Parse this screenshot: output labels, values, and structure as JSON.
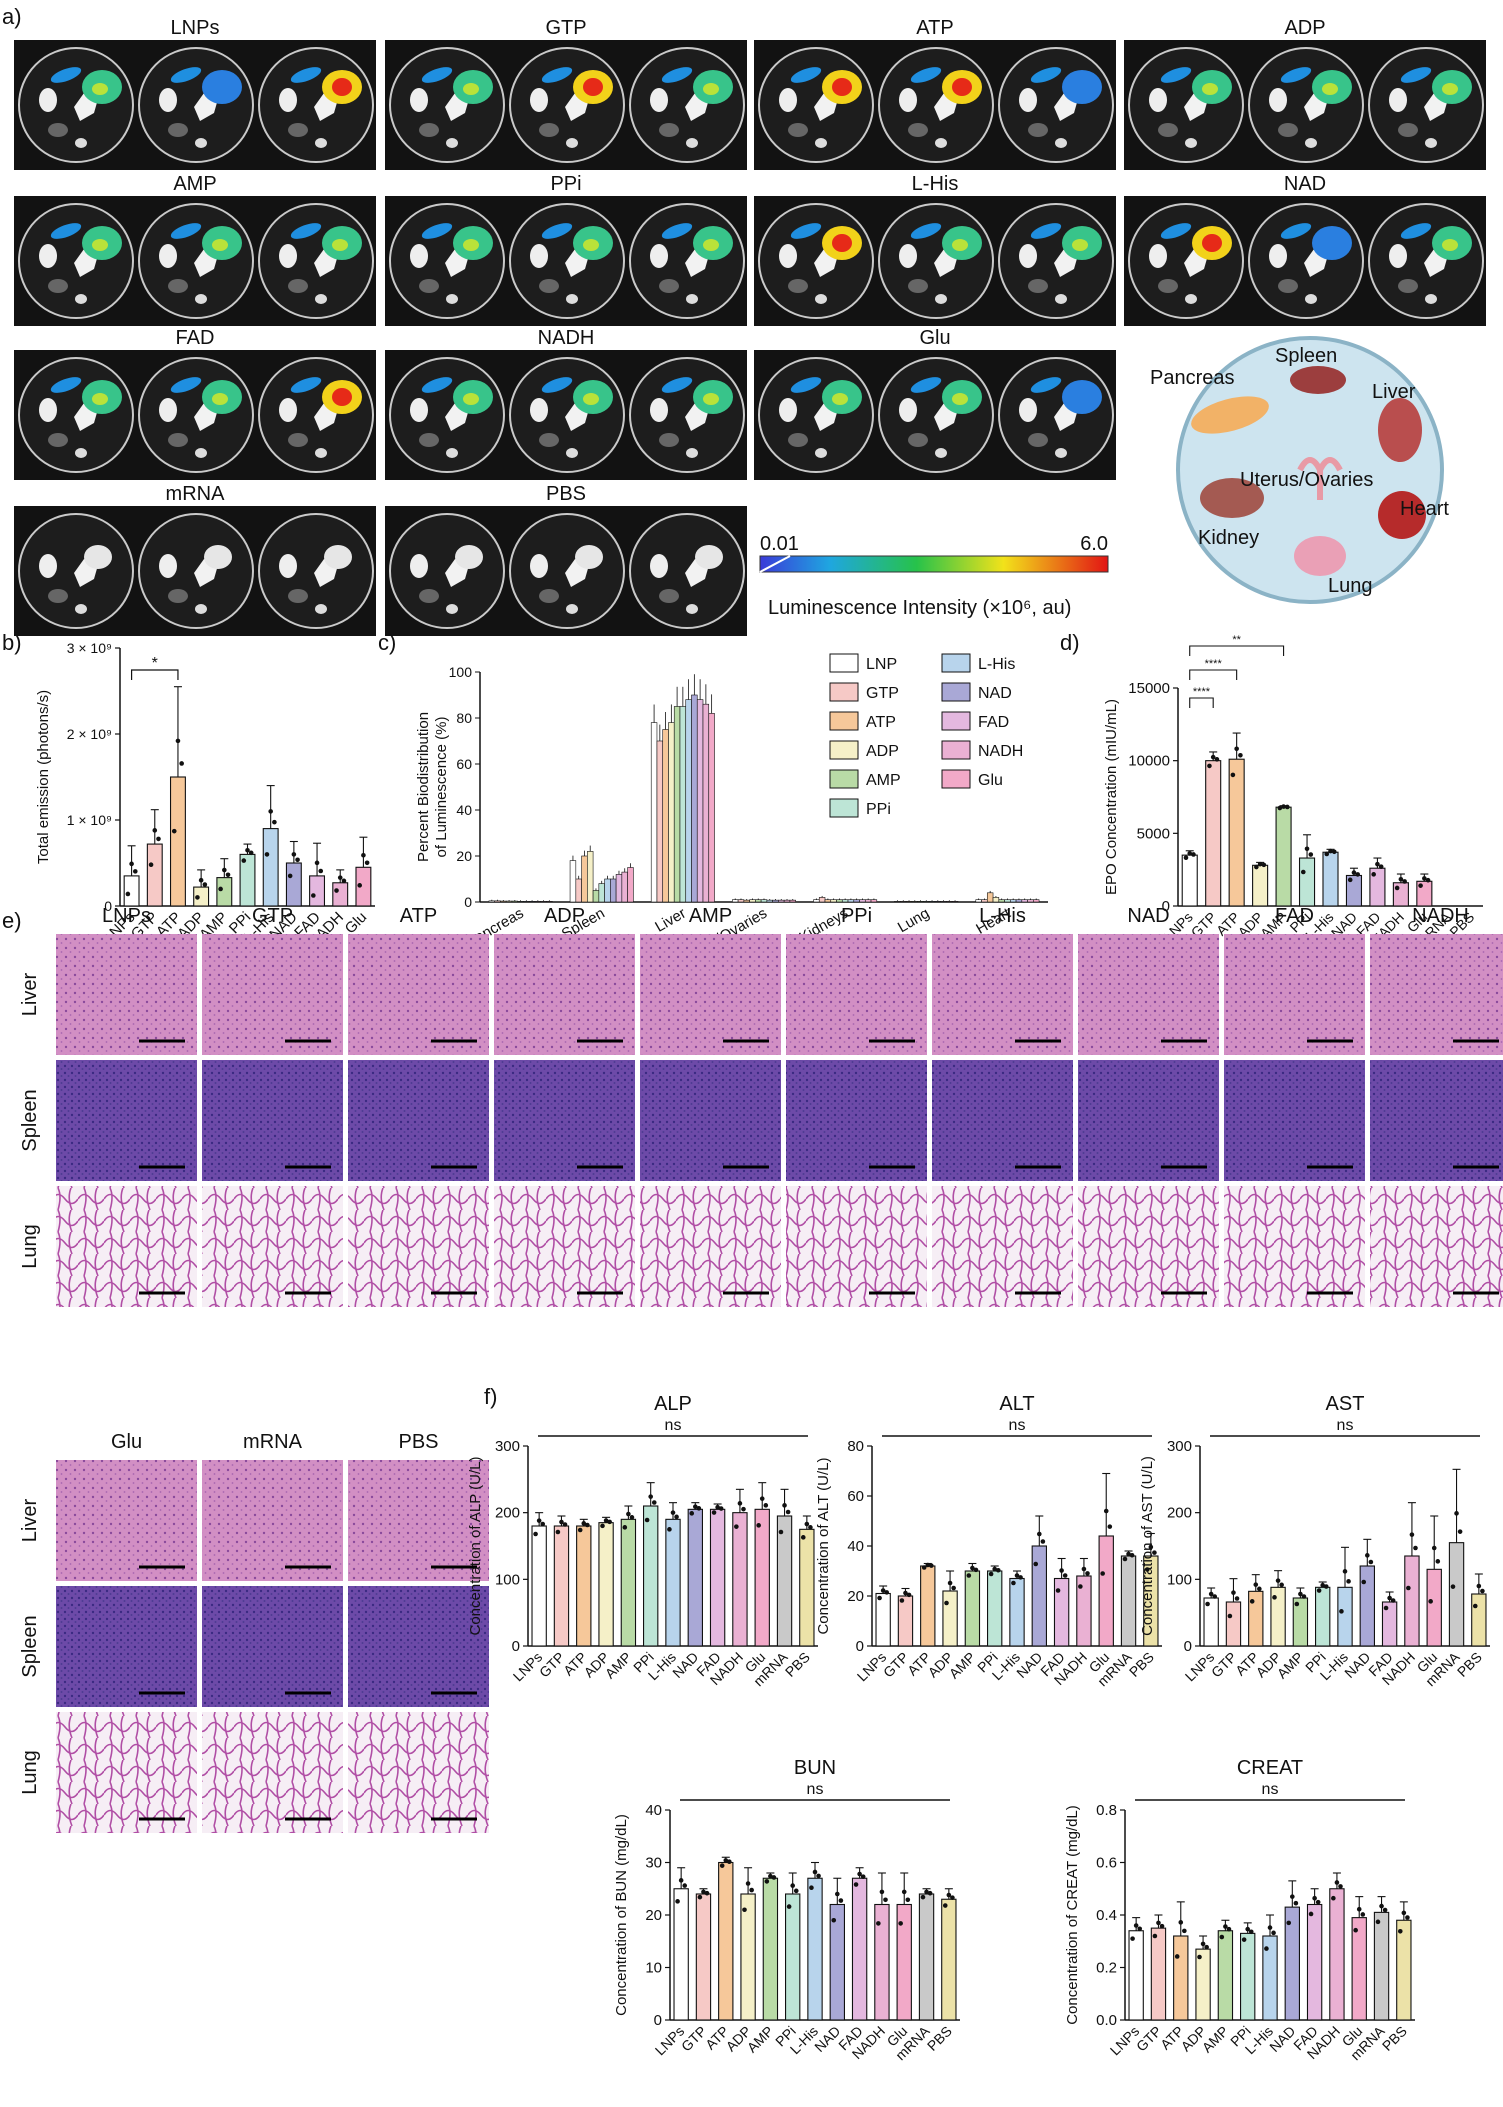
{
  "panels": {
    "a": "a)",
    "b": "b)",
    "c": "c)",
    "d": "d)",
    "e": "e)",
    "f": "f)"
  },
  "imaging": {
    "groups": [
      "LNPs",
      "GTP",
      "ATP",
      "ADP",
      "AMP",
      "PPi",
      "L-His",
      "NAD",
      "FAD",
      "NADH",
      "Glu",
      "mRNA",
      "PBS"
    ],
    "colorbar": {
      "min": "0.01",
      "max": "6.0",
      "label": "Luminescence Intensity (×10⁶, au)"
    },
    "organ_schematic": [
      "Pancreas",
      "Spleen",
      "Liver",
      "Uterus/Ovaries",
      "Heart",
      "Kidney",
      "Lung"
    ]
  },
  "histology": {
    "columns_top": [
      "LNPs",
      "GTP",
      "ATP",
      "ADP",
      "AMP",
      "PPi",
      "L-His",
      "NAD",
      "FAD",
      "NADH"
    ],
    "columns_bottom": [
      "Glu",
      "mRNA",
      "PBS"
    ],
    "rows": [
      "Liver",
      "Spleen",
      "Lung"
    ]
  },
  "colors": {
    "LNPs": "#ffffff",
    "GTP": "#f6c9c6",
    "ATP": "#f6c89a",
    "ADP": "#f5f0c8",
    "AMP": "#b9dba6",
    "PPi": "#bde5d6",
    "L-His": "#b8d4ec",
    "NAD": "#a9a8d6",
    "FAD": "#e4b8df",
    "NADH": "#eab1d3",
    "Glu": "#f2a9c8",
    "mRNA": "#c9c9c9",
    "PBS": "#ece2a8"
  },
  "chart_data": [
    {
      "id": "b",
      "type": "bar",
      "categories": [
        "LNPs",
        "GTP",
        "ATP",
        "ADP",
        "AMP",
        "PPi",
        "L-His",
        "NAD",
        "FAD",
        "NADH",
        "Glu"
      ],
      "values": [
        0.35,
        0.72,
        1.5,
        0.22,
        0.33,
        0.6,
        0.9,
        0.5,
        0.35,
        0.27,
        0.45
      ],
      "errors": [
        0.35,
        0.4,
        1.05,
        0.2,
        0.22,
        0.12,
        0.5,
        0.25,
        0.38,
        0.15,
        0.35
      ],
      "ylabel": "Total emission (photons/s)",
      "ylim": [
        0,
        3
      ],
      "yticks": [
        "0",
        "1 × 10⁹",
        "2 × 10⁹",
        "3 × 10⁹"
      ],
      "significance": [
        {
          "from": "LNPs",
          "to": "ATP",
          "label": "*"
        }
      ]
    },
    {
      "id": "c",
      "type": "bar",
      "categories": [
        "Pancreas",
        "Spleen",
        "Liver",
        "Uterus/Ovaries",
        "Kidneys",
        "Lung",
        "Heart"
      ],
      "series": [
        {
          "name": "LNP",
          "values": [
            0.5,
            18,
            78,
            1,
            1,
            0.3,
            1
          ]
        },
        {
          "name": "GTP",
          "values": [
            0.5,
            10,
            70,
            1,
            2,
            0.3,
            1
          ]
        },
        {
          "name": "ATP",
          "values": [
            0.4,
            20,
            75,
            0.8,
            1,
            0.3,
            4
          ]
        },
        {
          "name": "ADP",
          "values": [
            0.4,
            22,
            78,
            1,
            1,
            0.3,
            2
          ]
        },
        {
          "name": "AMP",
          "values": [
            0.4,
            5,
            85,
            1,
            1,
            0.3,
            1
          ]
        },
        {
          "name": "PPi",
          "values": [
            0.3,
            8,
            85,
            1,
            1,
            0.3,
            1
          ]
        },
        {
          "name": "L-His",
          "values": [
            0.3,
            10,
            88,
            0.8,
            1,
            0.3,
            1
          ]
        },
        {
          "name": "NAD",
          "values": [
            0.3,
            10,
            90,
            0.8,
            1,
            0.3,
            1
          ]
        },
        {
          "name": "FAD",
          "values": [
            0.3,
            12,
            88,
            0.8,
            1,
            0.3,
            1
          ]
        },
        {
          "name": "NADH",
          "values": [
            0.3,
            13,
            86,
            0.8,
            1,
            0.3,
            1
          ]
        },
        {
          "name": "Glu",
          "values": [
            0.3,
            15,
            82,
            0.8,
            1,
            0.3,
            1
          ]
        }
      ],
      "ylabel": "Percent Biodistribution of Luminescence (%)",
      "ylim": [
        0,
        100
      ],
      "yticks": [
        "0",
        "20",
        "40",
        "60",
        "80",
        "100"
      ]
    },
    {
      "id": "d",
      "type": "bar",
      "categories": [
        "LNPs",
        "GTP",
        "ATP",
        "ADP",
        "AMP",
        "PPi",
        "L-His",
        "NAD",
        "FAD",
        "NADH",
        "Glu",
        "mRNA",
        "PBS"
      ],
      "values": [
        3500,
        10000,
        10100,
        2800,
        6800,
        3300,
        3700,
        2100,
        2600,
        1600,
        1700,
        0,
        0
      ],
      "errors": [
        300,
        600,
        1800,
        200,
        100,
        1600,
        200,
        500,
        700,
        600,
        500,
        0,
        0
      ],
      "ylabel": "EPO Concentration (mIU/mL)",
      "ylim": [
        0,
        15000
      ],
      "yticks": [
        "0",
        "5000",
        "10000",
        "15000"
      ],
      "significance": [
        {
          "from": "LNPs",
          "to": "GTP",
          "label": "****"
        },
        {
          "from": "LNPs",
          "to": "ATP",
          "label": "****"
        },
        {
          "from": "LNPs",
          "to": "AMP",
          "label": "**"
        }
      ]
    },
    {
      "id": "ALP",
      "type": "bar",
      "title": "ALP",
      "ns": "ns",
      "categories": [
        "LNPs",
        "GTP",
        "ATP",
        "ADP",
        "AMP",
        "PPi",
        "L-His",
        "NAD",
        "FAD",
        "NADH",
        "Glu",
        "mRNA",
        "PBS"
      ],
      "values": [
        180,
        180,
        180,
        185,
        190,
        210,
        190,
        205,
        205,
        200,
        205,
        195,
        175
      ],
      "errors": [
        20,
        15,
        10,
        8,
        20,
        35,
        25,
        10,
        8,
        35,
        40,
        40,
        20
      ],
      "ylabel": "Concentration of ALP (U/L)",
      "ylim": [
        0,
        300
      ],
      "yticks": [
        "0",
        "100",
        "200",
        "300"
      ]
    },
    {
      "id": "ALT",
      "type": "bar",
      "title": "ALT",
      "ns": "ns",
      "categories": [
        "LNPs",
        "GTP",
        "ATP",
        "ADP",
        "AMP",
        "PPi",
        "L-His",
        "NAD",
        "FAD",
        "NADH",
        "Glu",
        "mRNA",
        "PBS"
      ],
      "values": [
        21,
        20,
        32,
        22,
        30,
        30,
        27,
        40,
        27,
        28,
        44,
        36,
        36
      ],
      "errors": [
        3,
        3,
        1,
        8,
        3,
        2,
        3,
        12,
        8,
        7,
        25,
        2,
        9
      ],
      "ylabel": "Concentration of ALT (U/L)",
      "ylim": [
        0,
        80
      ],
      "yticks": [
        "0",
        "20",
        "40",
        "60",
        "80"
      ]
    },
    {
      "id": "AST",
      "type": "bar",
      "title": "AST",
      "ns": "ns",
      "categories": [
        "LNPs",
        "GTP",
        "ATP",
        "ADP",
        "AMP",
        "PPi",
        "L-His",
        "NAD",
        "FAD",
        "NADH",
        "Glu",
        "mRNA",
        "PBS"
      ],
      "values": [
        72,
        66,
        82,
        88,
        72,
        88,
        88,
        120,
        66,
        135,
        115,
        155,
        78
      ],
      "errors": [
        15,
        35,
        25,
        25,
        15,
        8,
        60,
        40,
        15,
        80,
        80,
        110,
        30
      ],
      "ylabel": "Concentration of AST (U/L)",
      "ylim": [
        0,
        300
      ],
      "yticks": [
        "0",
        "100",
        "200",
        "300"
      ]
    },
    {
      "id": "BUN",
      "type": "bar",
      "title": "BUN",
      "ns": "ns",
      "categories": [
        "LNPs",
        "GTP",
        "ATP",
        "ADP",
        "AMP",
        "PPi",
        "L-His",
        "NAD",
        "FAD",
        "NADH",
        "Glu",
        "mRNA",
        "PBS"
      ],
      "values": [
        25,
        24,
        30,
        24,
        27,
        24,
        27,
        22,
        27,
        22,
        22,
        24,
        23
      ],
      "errors": [
        4,
        1,
        1,
        5,
        1,
        4,
        3,
        5,
        2,
        6,
        6,
        1,
        2
      ],
      "ylabel": "Concentration of BUN (mg/dL)",
      "ylim": [
        0,
        40
      ],
      "yticks": [
        "0",
        "10",
        "20",
        "30",
        "40"
      ]
    },
    {
      "id": "CREAT",
      "type": "bar",
      "title": "CREAT",
      "ns": "ns",
      "categories": [
        "LNPs",
        "GTP",
        "ATP",
        "ADP",
        "AMP",
        "PPi",
        "L-His",
        "NAD",
        "FAD",
        "NADH",
        "Glu",
        "mRNA",
        "PBS"
      ],
      "values": [
        0.34,
        0.35,
        0.32,
        0.27,
        0.34,
        0.33,
        0.32,
        0.43,
        0.44,
        0.5,
        0.39,
        0.41,
        0.38
      ],
      "errors": [
        0.05,
        0.05,
        0.13,
        0.05,
        0.04,
        0.04,
        0.08,
        0.1,
        0.06,
        0.06,
        0.08,
        0.06,
        0.07
      ],
      "ylabel": "Concentration of CREAT (mg/dL)",
      "ylim": [
        0,
        0.8
      ],
      "yticks": [
        "0.0",
        "0.2",
        "0.4",
        "0.6",
        "0.8"
      ]
    }
  ]
}
